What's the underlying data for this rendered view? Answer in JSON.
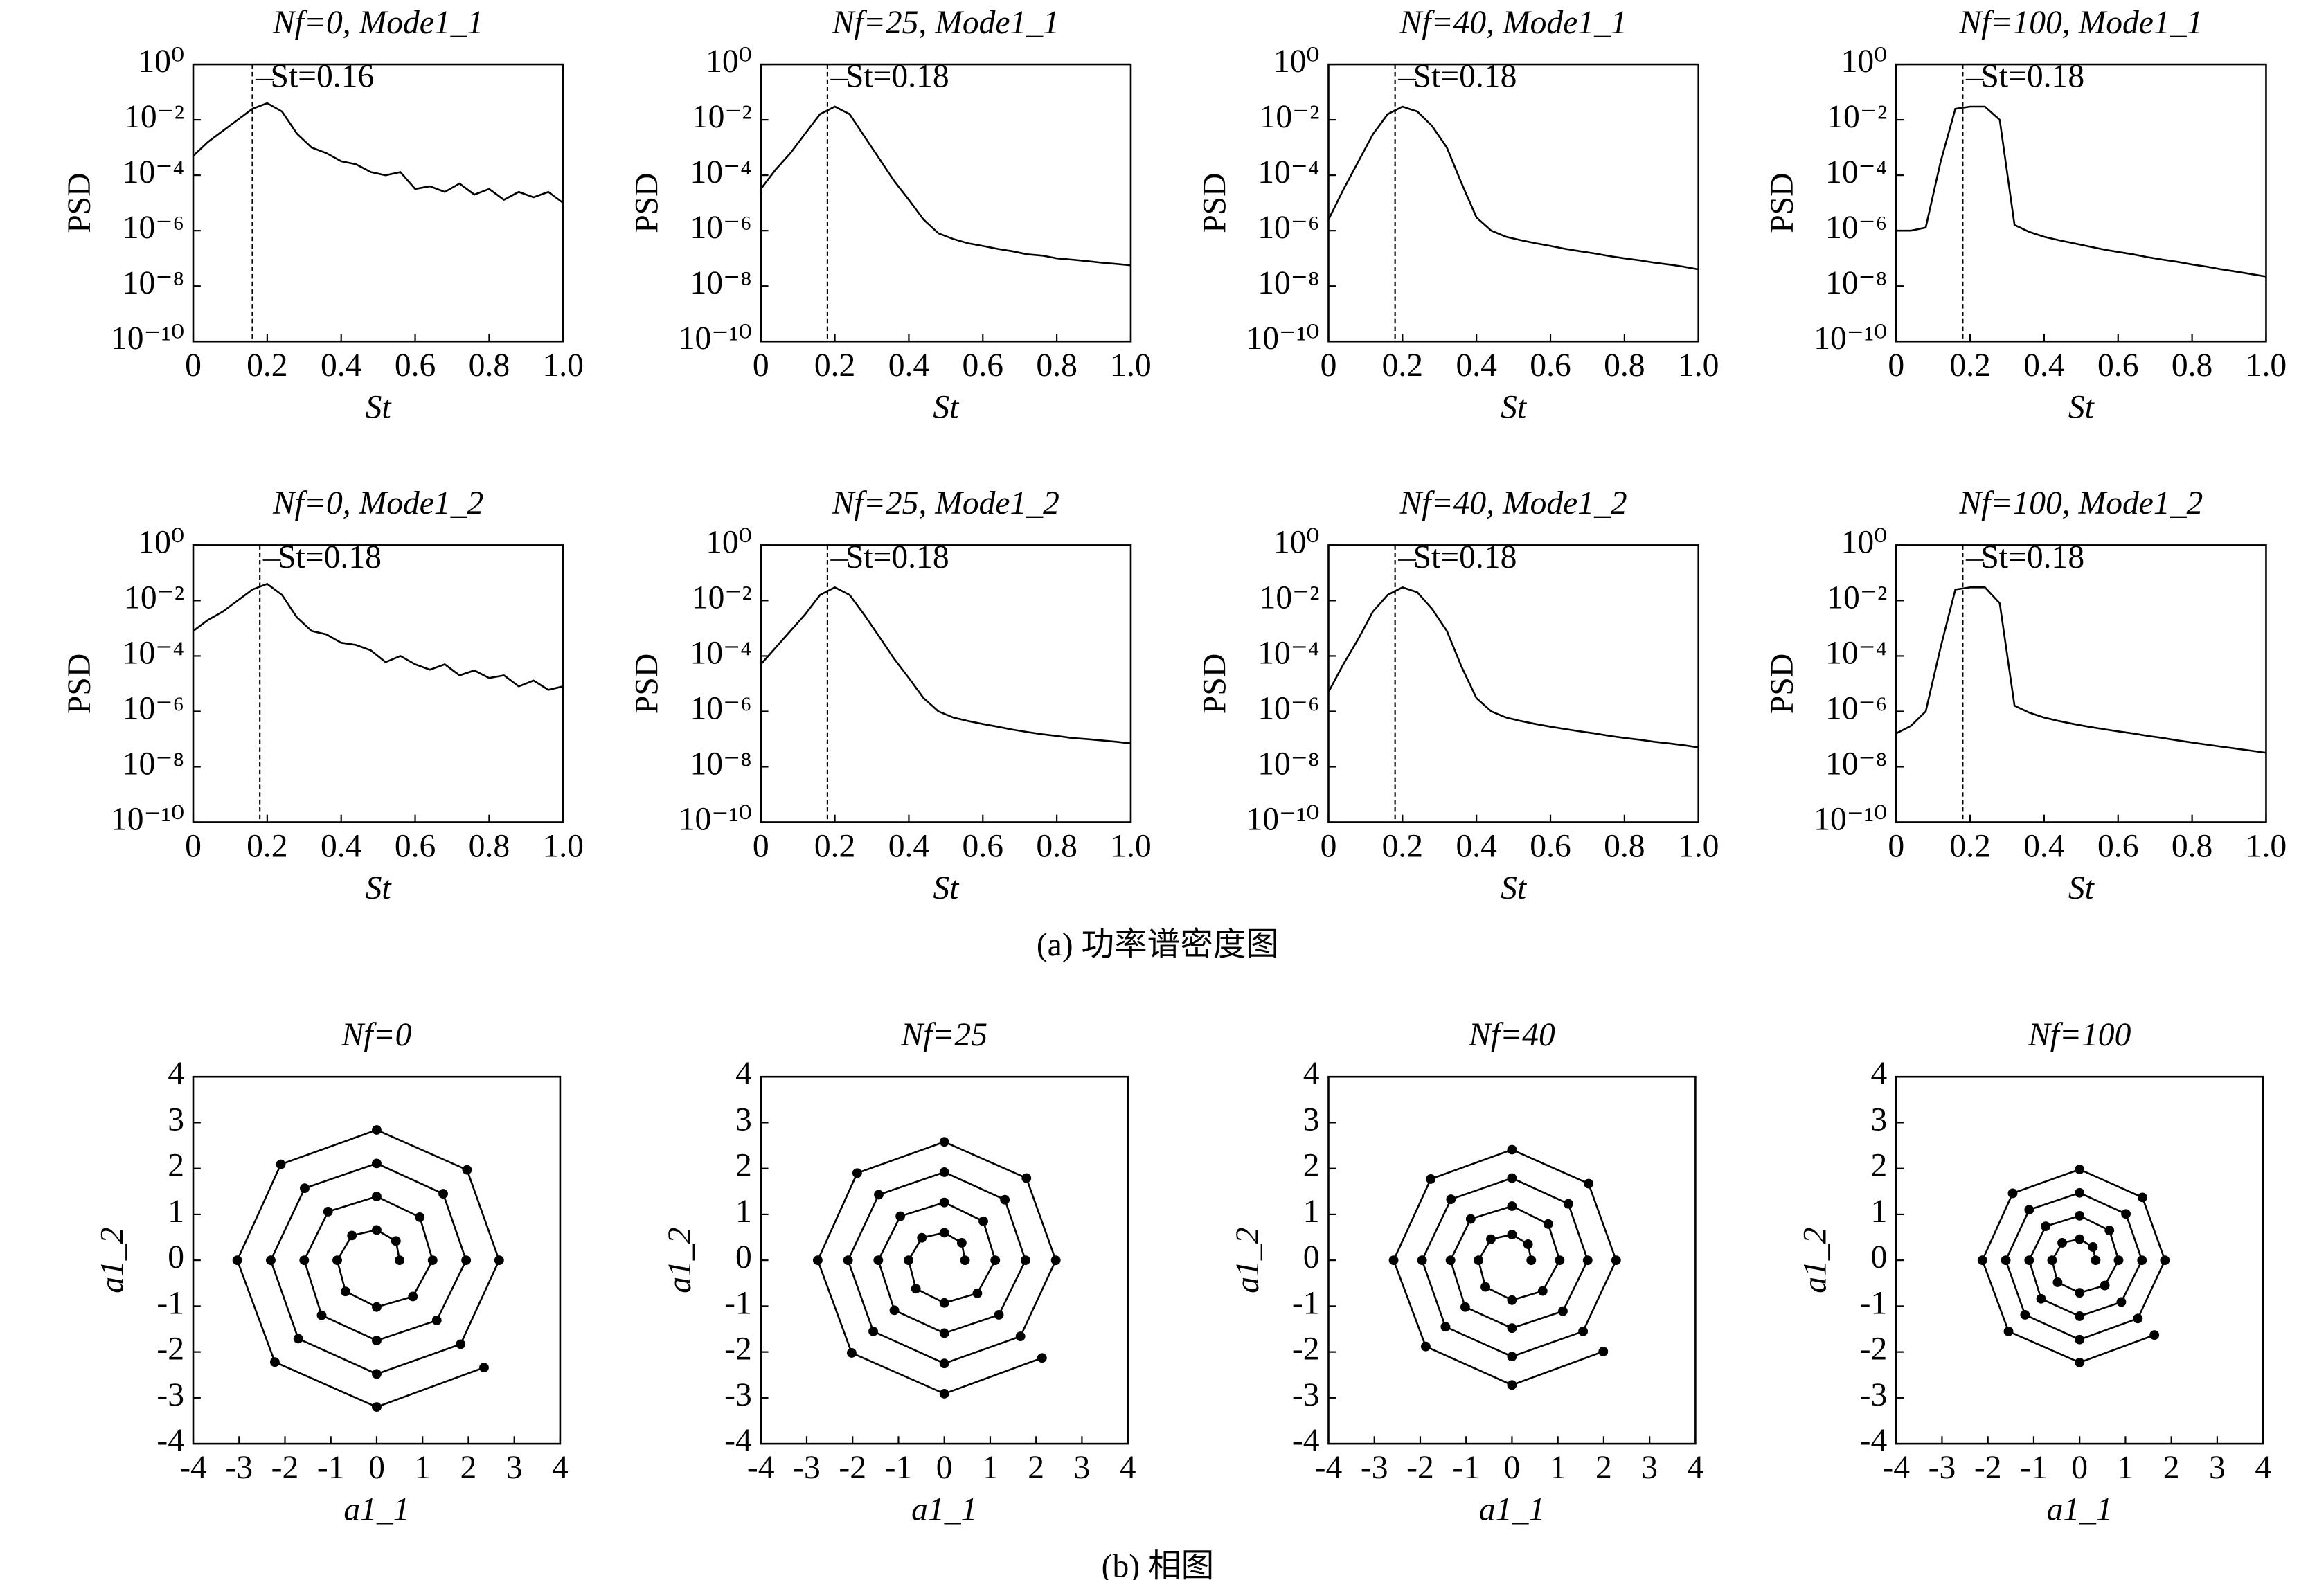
{
  "chart_data": [
    {
      "type": "line",
      "title": "Nf=0, Mode1_1",
      "xlabel": "St",
      "ylabel": "PSD",
      "log_y": true,
      "color": "#000000",
      "x": [
        0,
        0.04,
        0.08,
        0.12,
        0.16,
        0.2,
        0.24,
        0.28,
        0.32,
        0.36,
        0.4,
        0.44,
        0.48,
        0.52,
        0.56,
        0.6,
        0.64,
        0.68,
        0.72,
        0.76,
        0.8,
        0.84,
        0.88,
        0.92,
        0.96,
        1.0
      ],
      "values": [
        0.0005,
        0.0016,
        0.004,
        0.01,
        0.025,
        0.04,
        0.02,
        0.0032,
        0.001,
        0.00063,
        0.00032,
        0.00025,
        0.00013,
        0.0001,
        0.00013,
        3.2e-05,
        4e-05,
        2.5e-05,
        5e-05,
        2e-05,
        3.2e-05,
        1.3e-05,
        2.5e-05,
        1.6e-05,
        2.5e-05,
        1e-05
      ],
      "annotation": {
        "text": "St=0.16",
        "x": 0.16
      },
      "xlim": [
        0,
        1
      ],
      "xticks": [
        0,
        0.2,
        0.4,
        0.6,
        0.8,
        {
          "value": 1,
          "label": "1.0"
        }
      ],
      "ylim": [
        1e-10,
        1
      ],
      "yticks": [
        {
          "value": 1e-10,
          "label": "10⁻¹⁰"
        },
        {
          "value": 1e-08,
          "label": "10⁻⁸"
        },
        {
          "value": 1e-06,
          "label": "10⁻⁶"
        },
        {
          "value": 0.0001,
          "label": "10⁻⁴"
        },
        {
          "value": 0.01,
          "label": "10⁻²"
        },
        {
          "value": 1,
          "label": "10⁰"
        }
      ]
    },
    {
      "type": "line",
      "title": "Nf=25, Mode1_1",
      "xlabel": "St",
      "ylabel": "PSD",
      "log_y": true,
      "color": "#000000",
      "x": [
        0,
        0.04,
        0.08,
        0.12,
        0.16,
        0.2,
        0.24,
        0.28,
        0.32,
        0.36,
        0.4,
        0.44,
        0.48,
        0.52,
        0.56,
        0.6,
        0.64,
        0.68,
        0.72,
        0.76,
        0.8,
        0.84,
        0.88,
        0.92,
        0.96,
        1.0
      ],
      "values": [
        3.2e-05,
        0.00016,
        0.00063,
        0.0032,
        0.016,
        0.03,
        0.016,
        0.0025,
        0.0004,
        6.3e-05,
        1.3e-05,
        2.5e-06,
        8e-07,
        5e-07,
        3.5e-07,
        2.8e-07,
        2.2e-07,
        1.8e-07,
        1.4e-07,
        1.26e-07,
        1e-07,
        9e-08,
        8e-08,
        7e-08,
        6.3e-08,
        5.6e-08
      ],
      "annotation": {
        "text": "St=0.18",
        "x": 0.18
      },
      "xlim": [
        0,
        1
      ],
      "xticks": [
        0,
        0.2,
        0.4,
        0.6,
        0.8,
        {
          "value": 1,
          "label": "1.0"
        }
      ],
      "ylim": [
        1e-10,
        1
      ],
      "yticks": [
        {
          "value": 1e-10,
          "label": "10⁻¹⁰"
        },
        {
          "value": 1e-08,
          "label": "10⁻⁸"
        },
        {
          "value": 1e-06,
          "label": "10⁻⁶"
        },
        {
          "value": 0.0001,
          "label": "10⁻⁴"
        },
        {
          "value": 0.01,
          "label": "10⁻²"
        },
        {
          "value": 1,
          "label": "10⁰"
        }
      ]
    },
    {
      "type": "line",
      "title": "Nf=40, Mode1_1",
      "xlabel": "St",
      "ylabel": "PSD",
      "log_y": true,
      "color": "#000000",
      "x": [
        0,
        0.04,
        0.08,
        0.12,
        0.16,
        0.2,
        0.24,
        0.28,
        0.32,
        0.36,
        0.4,
        0.44,
        0.48,
        0.52,
        0.56,
        0.6,
        0.64,
        0.68,
        0.72,
        0.76,
        0.8,
        0.84,
        0.88,
        0.92,
        0.96,
        1.0
      ],
      "values": [
        2.5e-06,
        3e-05,
        0.0003,
        0.003,
        0.016,
        0.03,
        0.02,
        0.006,
        0.001,
        5e-05,
        3e-06,
        1e-06,
        6e-07,
        4.5e-07,
        3.5e-07,
        2.8e-07,
        2.2e-07,
        1.8e-07,
        1.5e-07,
        1.2e-07,
        1e-07,
        8.5e-08,
        7e-08,
        6e-08,
        5e-08,
        4e-08
      ],
      "annotation": {
        "text": "St=0.18",
        "x": 0.18
      },
      "xlim": [
        0,
        1
      ],
      "xticks": [
        0,
        0.2,
        0.4,
        0.6,
        0.8,
        {
          "value": 1,
          "label": "1.0"
        }
      ],
      "ylim": [
        1e-10,
        1
      ],
      "yticks": [
        {
          "value": 1e-10,
          "label": "10⁻¹⁰"
        },
        {
          "value": 1e-08,
          "label": "10⁻⁸"
        },
        {
          "value": 1e-06,
          "label": "10⁻⁶"
        },
        {
          "value": 0.0001,
          "label": "10⁻⁴"
        },
        {
          "value": 0.01,
          "label": "10⁻²"
        },
        {
          "value": 1,
          "label": "10⁰"
        }
      ]
    },
    {
      "type": "line",
      "title": "Nf=100, Mode1_1",
      "xlabel": "St",
      "ylabel": "PSD",
      "log_y": true,
      "color": "#000000",
      "x": [
        0,
        0.04,
        0.08,
        0.12,
        0.16,
        0.2,
        0.24,
        0.28,
        0.32,
        0.36,
        0.4,
        0.44,
        0.48,
        0.52,
        0.56,
        0.6,
        0.64,
        0.68,
        0.72,
        0.76,
        0.8,
        0.84,
        0.88,
        0.92,
        0.96,
        1.0
      ],
      "values": [
        1e-06,
        1e-06,
        1.3e-06,
        0.0003,
        0.025,
        0.03,
        0.03,
        0.01,
        1.6e-06,
        9e-07,
        6e-07,
        4.5e-07,
        3.5e-07,
        2.7e-07,
        2.1e-07,
        1.7e-07,
        1.4e-07,
        1.1e-07,
        9e-08,
        7.5e-08,
        6e-08,
        5e-08,
        4e-08,
        3.3e-08,
        2.7e-08,
        2.2e-08
      ],
      "annotation": {
        "text": "St=0.18",
        "x": 0.18
      },
      "xlim": [
        0,
        1
      ],
      "xticks": [
        0,
        0.2,
        0.4,
        0.6,
        0.8,
        {
          "value": 1,
          "label": "1.0"
        }
      ],
      "ylim": [
        1e-10,
        1
      ],
      "yticks": [
        {
          "value": 1e-10,
          "label": "10⁻¹⁰"
        },
        {
          "value": 1e-08,
          "label": "10⁻⁸"
        },
        {
          "value": 1e-06,
          "label": "10⁻⁶"
        },
        {
          "value": 0.0001,
          "label": "10⁻⁴"
        },
        {
          "value": 0.01,
          "label": "10⁻²"
        },
        {
          "value": 1,
          "label": "10⁰"
        }
      ]
    },
    {
      "type": "line",
      "title": "Nf=0, Mode1_2",
      "xlabel": "St",
      "ylabel": "PSD",
      "log_y": true,
      "color": "#000000",
      "x": [
        0,
        0.04,
        0.08,
        0.12,
        0.16,
        0.2,
        0.24,
        0.28,
        0.32,
        0.36,
        0.4,
        0.44,
        0.48,
        0.52,
        0.56,
        0.6,
        0.64,
        0.68,
        0.72,
        0.76,
        0.8,
        0.84,
        0.88,
        0.92,
        0.96,
        1.0
      ],
      "values": [
        0.0008,
        0.002,
        0.004,
        0.01,
        0.025,
        0.04,
        0.016,
        0.0025,
        0.0008,
        0.0006,
        0.0003,
        0.00025,
        0.00016,
        6e-05,
        0.0001,
        5e-05,
        3.2e-05,
        5e-05,
        2e-05,
        3e-05,
        1.6e-05,
        2e-05,
        8e-06,
        1.3e-05,
        6e-06,
        8e-06
      ],
      "annotation": {
        "text": "St=0.18",
        "x": 0.18
      },
      "xlim": [
        0,
        1
      ],
      "xticks": [
        0,
        0.2,
        0.4,
        0.6,
        0.8,
        {
          "value": 1,
          "label": "1.0"
        }
      ],
      "ylim": [
        1e-10,
        1
      ],
      "yticks": [
        {
          "value": 1e-10,
          "label": "10⁻¹⁰"
        },
        {
          "value": 1e-08,
          "label": "10⁻⁸"
        },
        {
          "value": 1e-06,
          "label": "10⁻⁶"
        },
        {
          "value": 0.0001,
          "label": "10⁻⁴"
        },
        {
          "value": 0.01,
          "label": "10⁻²"
        },
        {
          "value": 1,
          "label": "10⁰"
        }
      ]
    },
    {
      "type": "line",
      "title": "Nf=25, Mode1_2",
      "xlabel": "St",
      "ylabel": "PSD",
      "log_y": true,
      "color": "#000000",
      "x": [
        0,
        0.04,
        0.08,
        0.12,
        0.16,
        0.2,
        0.24,
        0.28,
        0.32,
        0.36,
        0.4,
        0.44,
        0.48,
        0.52,
        0.56,
        0.6,
        0.64,
        0.68,
        0.72,
        0.76,
        0.8,
        0.84,
        0.88,
        0.92,
        0.96,
        1.0
      ],
      "values": [
        5e-05,
        0.0002,
        0.0008,
        0.0032,
        0.016,
        0.03,
        0.016,
        0.003,
        0.0005,
        8e-05,
        1.6e-05,
        3e-06,
        1e-06,
        6e-07,
        4.5e-07,
        3.5e-07,
        2.8e-07,
        2.2e-07,
        1.8e-07,
        1.5e-07,
        1.3e-07,
        1.1e-07,
        1e-07,
        9e-08,
        8e-08,
        7e-08
      ],
      "annotation": {
        "text": "St=0.18",
        "x": 0.18
      },
      "xlim": [
        0,
        1
      ],
      "xticks": [
        0,
        0.2,
        0.4,
        0.6,
        0.8,
        {
          "value": 1,
          "label": "1.0"
        }
      ],
      "ylim": [
        1e-10,
        1
      ],
      "yticks": [
        {
          "value": 1e-10,
          "label": "10⁻¹⁰"
        },
        {
          "value": 1e-08,
          "label": "10⁻⁸"
        },
        {
          "value": 1e-06,
          "label": "10⁻⁶"
        },
        {
          "value": 0.0001,
          "label": "10⁻⁴"
        },
        {
          "value": 0.01,
          "label": "10⁻²"
        },
        {
          "value": 1,
          "label": "10⁰"
        }
      ]
    },
    {
      "type": "line",
      "title": "Nf=40, Mode1_2",
      "xlabel": "St",
      "ylabel": "PSD",
      "log_y": true,
      "color": "#000000",
      "x": [
        0,
        0.04,
        0.08,
        0.12,
        0.16,
        0.2,
        0.24,
        0.28,
        0.32,
        0.36,
        0.4,
        0.44,
        0.48,
        0.52,
        0.56,
        0.6,
        0.64,
        0.68,
        0.72,
        0.76,
        0.8,
        0.84,
        0.88,
        0.92,
        0.96,
        1.0
      ],
      "values": [
        5e-06,
        5e-05,
        0.0004,
        0.004,
        0.016,
        0.03,
        0.02,
        0.005,
        0.0008,
        4e-05,
        3e-06,
        1e-06,
        6e-07,
        4.5e-07,
        3.5e-07,
        2.8e-07,
        2.3e-07,
        1.9e-07,
        1.6e-07,
        1.3e-07,
        1.1e-07,
        9.5e-08,
        8e-08,
        7e-08,
        6e-08,
        5e-08
      ],
      "annotation": {
        "text": "St=0.18",
        "x": 0.18
      },
      "xlim": [
        0,
        1
      ],
      "xticks": [
        0,
        0.2,
        0.4,
        0.6,
        0.8,
        {
          "value": 1,
          "label": "1.0"
        }
      ],
      "ylim": [
        1e-10,
        1
      ],
      "yticks": [
        {
          "value": 1e-10,
          "label": "10⁻¹⁰"
        },
        {
          "value": 1e-08,
          "label": "10⁻⁸"
        },
        {
          "value": 1e-06,
          "label": "10⁻⁶"
        },
        {
          "value": 0.0001,
          "label": "10⁻⁴"
        },
        {
          "value": 0.01,
          "label": "10⁻²"
        },
        {
          "value": 1,
          "label": "10⁰"
        }
      ]
    },
    {
      "type": "line",
      "title": "Nf=100, Mode1_2",
      "xlabel": "St",
      "ylabel": "PSD",
      "log_y": true,
      "color": "#000000",
      "x": [
        0,
        0.04,
        0.08,
        0.12,
        0.16,
        0.2,
        0.24,
        0.28,
        0.32,
        0.36,
        0.4,
        0.44,
        0.48,
        0.52,
        0.56,
        0.6,
        0.64,
        0.68,
        0.72,
        0.76,
        0.8,
        0.84,
        0.88,
        0.92,
        0.96,
        1.0
      ],
      "values": [
        1.6e-07,
        3e-07,
        1e-06,
        0.0002,
        0.025,
        0.03,
        0.03,
        0.008,
        1.6e-06,
        9e-07,
        6e-07,
        4.5e-07,
        3.5e-07,
        2.8e-07,
        2.3e-07,
        1.9e-07,
        1.6e-07,
        1.3e-07,
        1.1e-07,
        9e-08,
        7.5e-08,
        6.3e-08,
        5.3e-08,
        4.5e-08,
        3.8e-08,
        3.2e-08
      ],
      "annotation": {
        "text": "St=0.18",
        "x": 0.18
      },
      "xlim": [
        0,
        1
      ],
      "xticks": [
        0,
        0.2,
        0.4,
        0.6,
        0.8,
        {
          "value": 1,
          "label": "1.0"
        }
      ],
      "ylim": [
        1e-10,
        1
      ],
      "yticks": [
        {
          "value": 1e-10,
          "label": "10⁻¹⁰"
        },
        {
          "value": 1e-08,
          "label": "10⁻⁸"
        },
        {
          "value": 1e-06,
          "label": "10⁻⁶"
        },
        {
          "value": 0.0001,
          "label": "10⁻⁴"
        },
        {
          "value": 0.01,
          "label": "10⁻²"
        },
        {
          "value": 1,
          "label": "10⁰"
        }
      ]
    },
    {
      "type": "scatter",
      "title": "Nf=0",
      "xlabel": "a1_1",
      "ylabel": "a1_2",
      "connected": true,
      "color": "#000000",
      "x": [
        0.5,
        0.42,
        0,
        -0.54,
        -0.86,
        -0.68,
        0,
        0.79,
        1.22,
        0.94,
        0,
        -1.06,
        -1.58,
        -1.2,
        0,
        1.31,
        1.95,
        1.45,
        0,
        -1.57,
        -2.31,
        -1.71,
        0,
        1.83,
        2.67,
        1.97,
        0,
        -2.09,
        -3.04,
        -2.22,
        0,
        2.34
      ],
      "y": [
        0,
        0.42,
        0.66,
        0.54,
        0,
        -0.68,
        -1.02,
        -0.79,
        0,
        0.94,
        1.39,
        1.06,
        0,
        -1.2,
        -1.75,
        -1.31,
        0,
        1.45,
        2.11,
        1.57,
        0,
        -1.71,
        -2.48,
        -1.83,
        0,
        1.97,
        2.84,
        2.09,
        0,
        -2.22,
        -3.2,
        -2.34
      ],
      "xlim": [
        -4,
        4
      ],
      "xticks": [
        -4,
        -3,
        -2,
        -1,
        0,
        1,
        2,
        3,
        4
      ],
      "ylim": [
        -4,
        4
      ],
      "yticks": [
        -4,
        -3,
        -2,
        -1,
        0,
        1,
        2,
        3,
        4
      ]
    },
    {
      "type": "scatter",
      "title": "Nf=25",
      "xlabel": "a1_1",
      "ylabel": "a1_2",
      "connected": true,
      "color": "#000000",
      "x": [
        0.45,
        0.38,
        0,
        -0.49,
        -0.78,
        -0.62,
        0,
        0.72,
        1.11,
        0.85,
        0,
        -0.96,
        -1.44,
        -1.09,
        0,
        1.19,
        1.77,
        1.32,
        0,
        -1.43,
        -2.1,
        -1.55,
        0,
        1.66,
        2.43,
        1.79,
        0,
        -1.9,
        -2.76,
        -2.02,
        0,
        2.13
      ],
      "y": [
        0,
        0.38,
        0.6,
        0.49,
        0,
        -0.62,
        -0.93,
        -0.72,
        0,
        0.85,
        1.26,
        0.96,
        0,
        -1.09,
        -1.59,
        -1.19,
        0,
        1.32,
        1.92,
        1.43,
        0,
        -1.55,
        -2.25,
        -1.66,
        0,
        1.79,
        2.58,
        1.9,
        0,
        -2.02,
        -2.91,
        -2.13
      ],
      "xlim": [
        -4,
        4
      ],
      "xticks": [
        -4,
        -3,
        -2,
        -1,
        0,
        1,
        2,
        3,
        4
      ],
      "ylim": [
        -4,
        4
      ],
      "yticks": [
        -4,
        -3,
        -2,
        -1,
        0,
        1,
        2,
        3,
        4
      ]
    },
    {
      "type": "scatter",
      "title": "Nf=40",
      "xlabel": "a1_1",
      "ylabel": "a1_2",
      "connected": true,
      "color": "#000000",
      "x": [
        0.42,
        0.35,
        0,
        -0.46,
        -0.73,
        -0.58,
        0,
        0.67,
        1.04,
        0.79,
        0,
        -0.9,
        -1.34,
        -1.02,
        0,
        1.11,
        1.65,
        1.23,
        0,
        -1.33,
        -1.96,
        -1.45,
        0,
        1.55,
        2.27,
        1.67,
        0,
        -1.77,
        -2.58,
        -1.88,
        0,
        1.99
      ],
      "y": [
        0,
        0.35,
        0.56,
        0.46,
        0,
        -0.58,
        -0.87,
        -0.67,
        0,
        0.79,
        1.18,
        0.9,
        0,
        -1.02,
        -1.48,
        -1.11,
        0,
        1.23,
        1.79,
        1.33,
        0,
        -1.45,
        -2.1,
        -1.55,
        0,
        1.67,
        2.41,
        1.77,
        0,
        -1.88,
        -2.72,
        -1.99
      ],
      "xlim": [
        -4,
        4
      ],
      "xticks": [
        -4,
        -3,
        -2,
        -1,
        0,
        1,
        2,
        3,
        4
      ],
      "ylim": [
        -4,
        4
      ],
      "yticks": [
        -4,
        -3,
        -2,
        -1,
        0,
        1,
        2,
        3,
        4
      ]
    },
    {
      "type": "scatter",
      "title": "Nf=100",
      "xlabel": "a1_1",
      "ylabel": "a1_2",
      "connected": true,
      "color": "#000000",
      "x": [
        0.35,
        0.29,
        0,
        -0.38,
        -0.6,
        -0.48,
        0,
        0.55,
        0.85,
        0.65,
        0,
        -0.74,
        -1.1,
        -0.84,
        0,
        0.91,
        1.36,
        1.01,
        0,
        -1.1,
        -1.61,
        -1.19,
        0,
        1.27,
        1.86,
        1.37,
        0,
        -1.46,
        -2.12,
        -1.55,
        0,
        1.63
      ],
      "y": [
        0,
        0.29,
        0.46,
        0.38,
        0,
        -0.48,
        -0.71,
        -0.55,
        0,
        0.65,
        0.97,
        0.74,
        0,
        -0.84,
        -1.22,
        -0.91,
        0,
        1.01,
        1.47,
        1.1,
        0,
        -1.19,
        -1.73,
        -1.27,
        0,
        1.37,
        1.98,
        1.46,
        0,
        -1.55,
        -2.23,
        -1.63
      ],
      "xlim": [
        -4,
        4
      ],
      "xticks": [
        -4,
        -3,
        -2,
        -1,
        0,
        1,
        2,
        3,
        4
      ],
      "ylim": [
        -4,
        4
      ],
      "yticks": [
        -4,
        -3,
        -2,
        -1,
        0,
        1,
        2,
        3,
        4
      ]
    }
  ],
  "captions": [
    "(a) 功率谱密度图",
    "(b) 相图"
  ]
}
